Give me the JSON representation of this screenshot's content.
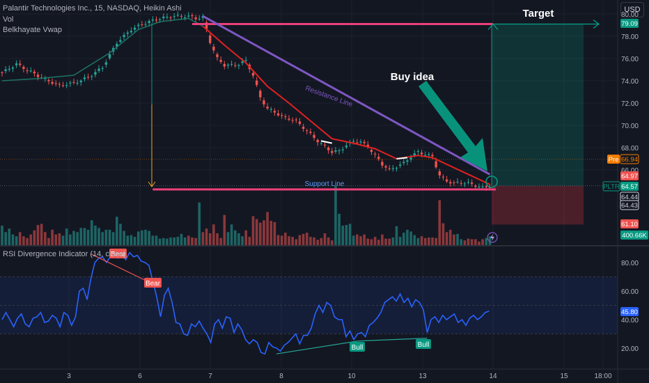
{
  "header": {
    "symbol_line": "Palantir Technologies Inc., 15, NASDAQ, Heikin Ashi",
    "indicator_1": "Vol",
    "indicator_2": "Belkhayate Vwap",
    "currency_button": "USD"
  },
  "rsi_panel": {
    "title": "RSI Divergence Indicator (14, close)"
  },
  "annotations": {
    "target": "Target",
    "buy_idea": "Buy idea",
    "resistance": "Resistance Line",
    "support": "Support Line",
    "bear_1": "Bear",
    "bear_2": "Bear",
    "bull_1": "Bull",
    "bull_2": "Bull"
  },
  "colors": {
    "background": "#131722",
    "up": "#26a69a",
    "down": "#ef5350",
    "vwap": "#e02020",
    "resistance": "#7e57c2",
    "target_line": "#ec407a",
    "rsi_line": "#2962ff",
    "buy_arrow": "#089981"
  },
  "price_badges": [
    {
      "text": "79.09",
      "color": "#089981"
    },
    {
      "text": "Pre",
      "color": "#f57c00"
    },
    {
      "text": "66.94",
      "color": "#f57c00",
      "dark": true
    },
    {
      "text": "64.97",
      "color": "#ef5350"
    },
    {
      "text": "PLTR",
      "color": "#089981",
      "dark": true
    },
    {
      "text": "64.57",
      "color": "#089981"
    },
    {
      "text": "64.44",
      "color": "#d1d4dc",
      "dark": true
    },
    {
      "text": "64.43",
      "color": "#d1d4dc",
      "dark": true
    },
    {
      "text": "61.10",
      "color": "#ef5350"
    },
    {
      "text": "400.66K",
      "color": "#089981"
    },
    {
      "text": "45.80",
      "color": "#2962ff"
    }
  ],
  "chart_data": [
    {
      "type": "candlestick",
      "title": "Palantir Technologies Inc., 15, NASDAQ, Heikin Ashi",
      "y_ticks": [
        80,
        78,
        76,
        74,
        72,
        70,
        68,
        66
      ],
      "ylim": [
        60.5,
        80.4
      ],
      "x_ticks": [
        "3",
        "6",
        "7",
        "8",
        "10",
        "13",
        "14",
        "15",
        "18:00"
      ],
      "close_path": [
        [
          0,
          74.7
        ],
        [
          4,
          75.5
        ],
        [
          8,
          74.8
        ],
        [
          12,
          74.1
        ],
        [
          16,
          73.6
        ],
        [
          20,
          73.8
        ],
        [
          24,
          74.3
        ],
        [
          28,
          75.2
        ],
        [
          32,
          77.4
        ],
        [
          36,
          78.6
        ],
        [
          40,
          79.2
        ],
        [
          44,
          79.6
        ],
        [
          48,
          79.8
        ],
        [
          52,
          79.8
        ],
        [
          54,
          79.6
        ],
        [
          56,
          79.7
        ],
        [
          58,
          77.5
        ],
        [
          60,
          76.0
        ],
        [
          62,
          75.4
        ],
        [
          64,
          75.4
        ],
        [
          66,
          75.5
        ],
        [
          68,
          75.8
        ],
        [
          70,
          74.5
        ],
        [
          72,
          72.5
        ],
        [
          74,
          71.5
        ],
        [
          76,
          71.2
        ],
        [
          78,
          70.8
        ],
        [
          80,
          70.6
        ],
        [
          82,
          70.4
        ],
        [
          84,
          69.8
        ],
        [
          86,
          69.2
        ],
        [
          88,
          68.6
        ],
        [
          90,
          68.1
        ],
        [
          92,
          67.6
        ],
        [
          94,
          67.7
        ],
        [
          96,
          68.2
        ],
        [
          98,
          68.6
        ],
        [
          100,
          68.5
        ],
        [
          102,
          68.1
        ],
        [
          104,
          67.3
        ],
        [
          106,
          66.5
        ],
        [
          108,
          66.0
        ],
        [
          110,
          66.3
        ],
        [
          112,
          66.6
        ],
        [
          114,
          67.2
        ],
        [
          116,
          67.6
        ],
        [
          118,
          67.4
        ],
        [
          120,
          67.2
        ],
        [
          122,
          65.5
        ],
        [
          124,
          65.0
        ],
        [
          126,
          64.8
        ],
        [
          128,
          64.9
        ],
        [
          130,
          64.8
        ],
        [
          132,
          64.6
        ],
        [
          134,
          64.4
        ],
        [
          136,
          64.5
        ]
      ],
      "vwap": [
        [
          0,
          74.0
        ],
        [
          10,
          74.2
        ],
        [
          20,
          74.5
        ],
        [
          30,
          76.5
        ],
        [
          38,
          78.6
        ],
        [
          44,
          79.3
        ],
        [
          52,
          79.6
        ],
        [
          56,
          78.9
        ],
        [
          62,
          77.2
        ],
        [
          68,
          75.6
        ],
        [
          74,
          73.5
        ],
        [
          80,
          72.0
        ],
        [
          86,
          70.4
        ],
        [
          92,
          68.8
        ],
        [
          98,
          68.4
        ],
        [
          104,
          67.9
        ],
        [
          110,
          67.0
        ],
        [
          116,
          67.3
        ],
        [
          120,
          67.1
        ],
        [
          126,
          66.2
        ],
        [
          132,
          65.3
        ],
        [
          136,
          64.7
        ]
      ],
      "annotations": {
        "target_price": 79.09,
        "support_price": 64.4,
        "resistance_from": [
          56,
          79.8
        ],
        "resistance_to": [
          136,
          65.6
        ],
        "long_entry": 64.57,
        "long_target": 79.09,
        "long_stop": 61.1
      }
    },
    {
      "type": "bar",
      "title": "Vol",
      "values": [
        0.33,
        0.22,
        0.28,
        0.18,
        0.15,
        0.22,
        0.15,
        0.12,
        0.18,
        0.25,
        0.34,
        0.36,
        0.22,
        0.12,
        0.26,
        0.18,
        0.2,
        0.16,
        0.28,
        0.18,
        0.24,
        0.22,
        0.29,
        0.29,
        0.26,
        0.42,
        0.33,
        0.29,
        0.22,
        0.26,
        0.26,
        0.22,
        0.48,
        0.36,
        0.24,
        0.16,
        0.17,
        0.14,
        0.23,
        0.25,
        0.26,
        0.24,
        0.16,
        0.16,
        0.11,
        0.12,
        0.11,
        0.13,
        0.13,
        0.14,
        0.19,
        0.13,
        0.16,
        0.13,
        0.12,
        0.72,
        0.22,
        0.28,
        0.2,
        0.35,
        0.2,
        0.12,
        0.51,
        0.22,
        0.35,
        0.25,
        0.2,
        0.15,
        0.25,
        0.14,
        0.49,
        0.44,
        0.38,
        0.42,
        0.56,
        0.41,
        0.39,
        0.17,
        0.16,
        0.21,
        0.15,
        0.14,
        0.1,
        0.17,
        0.19,
        0.21,
        0.14,
        0.13,
        0.09,
        0.12,
        0.2,
        0.13,
        0.08,
        1.0,
        0.53,
        0.33,
        0.34,
        0.36,
        0.16,
        0.18,
        0.15,
        0.18,
        0.11,
        0.1,
        0.14,
        0.09,
        0.18,
        0.11,
        0.11,
        0.13,
        0.32,
        0.14,
        0.21,
        0.26,
        0.23,
        0.17,
        0.12,
        0.15,
        0.12,
        0.13,
        0.13,
        0.12,
        0.76,
        0.37,
        0.22,
        0.26,
        0.18,
        0.19,
        0.1,
        0.08,
        0.11,
        0.1,
        0.1,
        0.06,
        0.1,
        0.12,
        0.15
      ]
    },
    {
      "type": "line",
      "title": "RSI Divergence Indicator (14, close)",
      "y_ticks": [
        80,
        60,
        40,
        20
      ],
      "ylim": [
        8,
        90
      ],
      "bands": [
        30,
        70
      ],
      "midline": 50,
      "values": [
        [
          0,
          40
        ],
        [
          1,
          45
        ],
        [
          2,
          40
        ],
        [
          3,
          35
        ],
        [
          4,
          41
        ],
        [
          5,
          44
        ],
        [
          6,
          37
        ],
        [
          7,
          35
        ],
        [
          8,
          41
        ],
        [
          9,
          42
        ],
        [
          10,
          45
        ],
        [
          11,
          38
        ],
        [
          12,
          39
        ],
        [
          13,
          43
        ],
        [
          14,
          41
        ],
        [
          15,
          35
        ],
        [
          16,
          45
        ],
        [
          17,
          43
        ],
        [
          18,
          36
        ],
        [
          19,
          42
        ],
        [
          20,
          60
        ],
        [
          21,
          62
        ],
        [
          22,
          54
        ],
        [
          23,
          69
        ],
        [
          24,
          80
        ],
        [
          25,
          83
        ],
        [
          26,
          84
        ],
        [
          27,
          80
        ],
        [
          28,
          84
        ],
        [
          29,
          85
        ],
        [
          30,
          83
        ],
        [
          31,
          86
        ],
        [
          32,
          82
        ],
        [
          33,
          87
        ],
        [
          34,
          84
        ],
        [
          35,
          85
        ],
        [
          36,
          81
        ],
        [
          37,
          80
        ],
        [
          38,
          78
        ],
        [
          39,
          67
        ],
        [
          40,
          56
        ],
        [
          41,
          42
        ],
        [
          42,
          57
        ],
        [
          43,
          62
        ],
        [
          44,
          52
        ],
        [
          45,
          38
        ],
        [
          46,
          37
        ],
        [
          47,
          30
        ],
        [
          48,
          29
        ],
        [
          49,
          37
        ],
        [
          50,
          35
        ],
        [
          51,
          39
        ],
        [
          52,
          34
        ],
        [
          53,
          30
        ],
        [
          54,
          24
        ],
        [
          55,
          37
        ],
        [
          56,
          40
        ],
        [
          57,
          34
        ],
        [
          58,
          42
        ],
        [
          59,
          41
        ],
        [
          60,
          31
        ],
        [
          61,
          37
        ],
        [
          62,
          33
        ],
        [
          63,
          26
        ],
        [
          64,
          23
        ],
        [
          65,
          26
        ],
        [
          66,
          24
        ],
        [
          67,
          17
        ],
        [
          68,
          16
        ],
        [
          69,
          24
        ],
        [
          70,
          21
        ],
        [
          71,
          20
        ],
        [
          72,
          18
        ],
        [
          73,
          22
        ],
        [
          74,
          24
        ],
        [
          75,
          27
        ],
        [
          76,
          30
        ],
        [
          77,
          23
        ],
        [
          78,
          29
        ],
        [
          79,
          29
        ],
        [
          80,
          34
        ],
        [
          81,
          44
        ],
        [
          82,
          50
        ],
        [
          83,
          45
        ],
        [
          84,
          52
        ],
        [
          85,
          50
        ],
        [
          86,
          42
        ],
        [
          87,
          40
        ],
        [
          88,
          40
        ],
        [
          89,
          28
        ],
        [
          90,
          32
        ],
        [
          91,
          26
        ],
        [
          92,
          30
        ],
        [
          93,
          31
        ],
        [
          94,
          28
        ],
        [
          95,
          36
        ],
        [
          96,
          38
        ],
        [
          97,
          41
        ],
        [
          98,
          45
        ],
        [
          99,
          52
        ],
        [
          100,
          54
        ],
        [
          101,
          56
        ],
        [
          102,
          53
        ],
        [
          103,
          58
        ],
        [
          104,
          52
        ],
        [
          105,
          55
        ],
        [
          106,
          49
        ],
        [
          107,
          54
        ],
        [
          108,
          52
        ],
        [
          109,
          47
        ],
        [
          110,
          31
        ],
        [
          111,
          40
        ],
        [
          112,
          42
        ],
        [
          113,
          38
        ],
        [
          114,
          43
        ],
        [
          115,
          40
        ],
        [
          116,
          42
        ],
        [
          117,
          44
        ],
        [
          118,
          38
        ],
        [
          119,
          40
        ],
        [
          120,
          36
        ],
        [
          121,
          41
        ],
        [
          122,
          43
        ],
        [
          123,
          40
        ],
        [
          124,
          42
        ],
        [
          125,
          45
        ],
        [
          126,
          46
        ]
      ],
      "divergences": [
        {
          "kind": "bear",
          "from": [
            23,
            86
          ],
          "to": [
            39,
            65
          ]
        },
        {
          "kind": "bull",
          "from": [
            71,
            16
          ],
          "to": [
            92,
            25
          ]
        },
        {
          "kind": "bull",
          "from": [
            92,
            25
          ],
          "to": [
            110,
            27
          ]
        }
      ]
    }
  ]
}
